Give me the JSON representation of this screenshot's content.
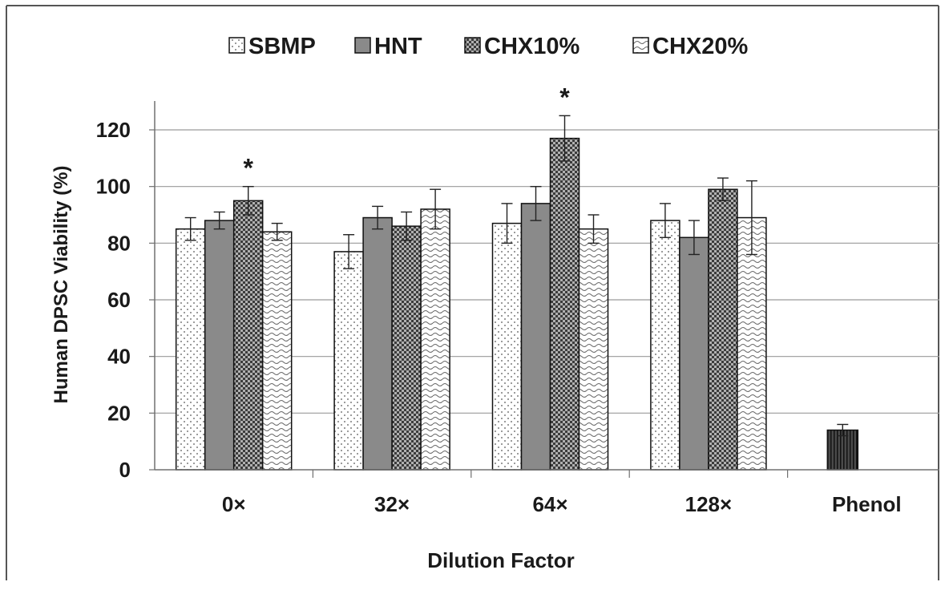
{
  "chart_data": {
    "type": "bar",
    "title": "",
    "xlabel": "Dilution Factor",
    "ylabel": "Human DPSC Viability  (%)",
    "ylim": [
      0,
      130
    ],
    "yticks": [
      0,
      20,
      40,
      60,
      80,
      100,
      120
    ],
    "grid": true,
    "legend_position": "top",
    "categories": [
      "0×",
      "32×",
      "64×",
      "128×",
      "Phenol"
    ],
    "series": [
      {
        "name": "SBMP",
        "pattern": "dots",
        "values": [
          85,
          77,
          87,
          88,
          null
        ],
        "errors": [
          4,
          6,
          7,
          6,
          null
        ]
      },
      {
        "name": "HNT",
        "pattern": "solid",
        "values": [
          88,
          89,
          94,
          82,
          null
        ],
        "errors": [
          3,
          4,
          6,
          6,
          null
        ]
      },
      {
        "name": "CHX10%",
        "pattern": "check",
        "values": [
          95,
          86,
          117,
          99,
          null
        ],
        "errors": [
          5,
          5,
          8,
          4,
          null
        ]
      },
      {
        "name": "CHX20%",
        "pattern": "wave",
        "values": [
          84,
          92,
          85,
          89,
          null
        ],
        "errors": [
          3,
          7,
          5,
          13,
          null
        ]
      }
    ],
    "control": {
      "category": "Phenol",
      "value": 14,
      "error": 2
    },
    "significance": [
      {
        "category": "0×",
        "series": "CHX10%",
        "label": "*"
      },
      {
        "category": "64×",
        "series": "CHX10%",
        "label": "*"
      }
    ],
    "colors": {
      "hnt": "#8a8a8a",
      "phenol": "#3a3a3a",
      "grid": "#9a9a9a",
      "axis": "#707070"
    }
  }
}
